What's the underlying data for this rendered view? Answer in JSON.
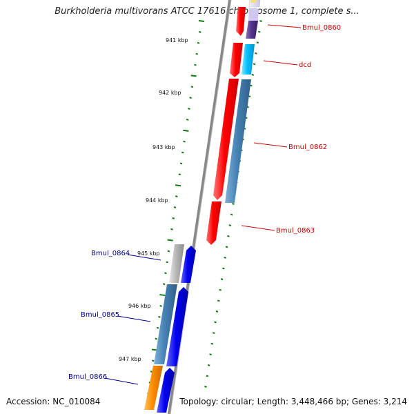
{
  "title": "Burkholderia multivorans ATCC 17616 chromosome 1, complete s...",
  "footer": {
    "accession": "Accession: NC_010084",
    "topology": "Topology: circular; Length: 3,448,466 bp; Genes: 3,214"
  },
  "ticks": [
    "941 kbp",
    "942 kbp",
    "943 kbp",
    "944 kbp",
    "945 kbp",
    "946 kbp",
    "947 kbp"
  ],
  "genes": [
    {
      "label": "Bmul_0860",
      "strand": "forward",
      "color": "#cc0000"
    },
    {
      "label": "dcd",
      "strand": "forward",
      "color": "#cc0000"
    },
    {
      "label": "Bmul_0862",
      "strand": "forward",
      "color": "#cc0000"
    },
    {
      "label": "Bmul_0863",
      "strand": "forward",
      "color": "#cc0000"
    },
    {
      "label": "Bmul_0864",
      "strand": "reverse",
      "color": "#00008b"
    },
    {
      "label": "Bmul_0865",
      "strand": "reverse",
      "color": "#00008b"
    },
    {
      "label": "Bmul_0866",
      "strand": "reverse",
      "color": "#00008b"
    }
  ],
  "colors": {
    "forward_cds": "#ff0000",
    "reverse_cds": "#0000ee",
    "backbone": "#888888",
    "ticks": "#117711",
    "steelblue": "#4682b4",
    "orange": "#ff8c00",
    "cyan": "#00bfff",
    "purple": "#553388",
    "gray": "#b0b0b0"
  }
}
